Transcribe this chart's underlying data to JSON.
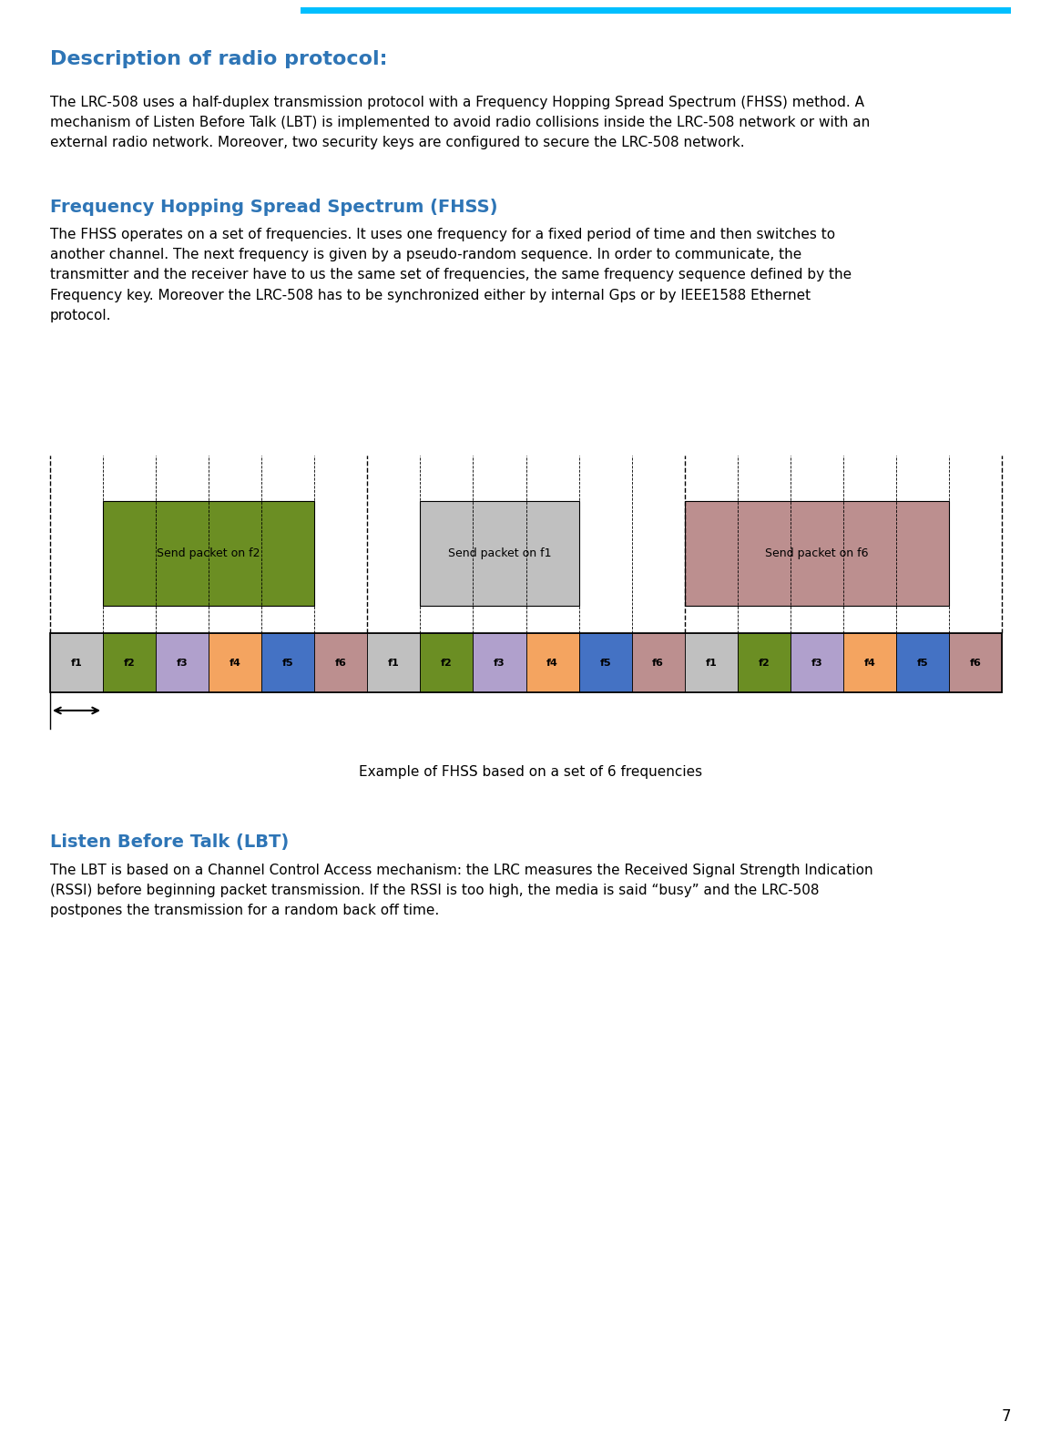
{
  "page_title": "Description of radio protocol:",
  "header_bar_color": "#00BFFF",
  "title_color": "#2E75B6",
  "section1_title": "Frequency Hopping Spread Spectrum (FHSS)",
  "section2_title": "Listen Before Talk (LBT)",
  "intro_text": "The LRC-508 uses a half-duplex transmission protocol with a Frequency Hopping Spread Spectrum (FHSS) method. A\nmechanism of Listen Before Talk (LBT) is implemented to avoid radio collisions inside the LRC-508 network or with an\nexternal radio network. Moreover, two security keys are configured to secure the LRC-508 network.",
  "fhss_text": "The FHSS operates on a set of frequencies. It uses one frequency for a fixed period of time and then switches to\nanother channel. The next frequency is given by a pseudo-random sequence. In order to communicate, the\ntransmitter and the receiver have to us the same set of frequencies, the same frequency sequence defined by the\nFrequency key. Moreover the LRC-508 has to be synchronized either by internal Gps or by IEEE1588 Ethernet\nprotocol.",
  "lbt_text": "The LBT is based on a Channel Control Access mechanism: the LRC measures the Received Signal Strength Indication\n(RSSI) before beginning packet transmission. If the RSSI is too high, the media is said “busy” and the LRC-508\npostpones the transmission for a random back off time.",
  "diagram_caption": "Example of FHSS based on a set of 6 frequencies",
  "freq_colors": {
    "f1": "#C0C0C0",
    "f2": "#6B8E23",
    "f3": "#B0A0CC",
    "f4": "#F4A460",
    "f5": "#4472C4",
    "f6": "#BC8F8F"
  },
  "freq_sequence": [
    "f1",
    "f2",
    "f3",
    "f4",
    "f5",
    "f6",
    "f1",
    "f2",
    "f3",
    "f4",
    "f5",
    "f6",
    "f1",
    "f2",
    "f3",
    "f4",
    "f5",
    "f6"
  ],
  "packet_boxes": [
    {
      "label": "Send packet on f2",
      "start": 1,
      "end": 5,
      "color": "#6B8E23",
      "text_color": "#000000"
    },
    {
      "label": "Send packet on f1",
      "start": 7,
      "end": 10,
      "color": "#C0C0C0",
      "text_color": "#000000"
    },
    {
      "label": "Send packet on f6",
      "start": 12,
      "end": 17,
      "color": "#BC8F8F",
      "text_color": "#000000"
    }
  ],
  "page_number": "7",
  "background_color": "#FFFFFF",
  "title_fontsize": 16,
  "section_fontsize": 14,
  "body_fontsize": 11,
  "caption_fontsize": 11
}
